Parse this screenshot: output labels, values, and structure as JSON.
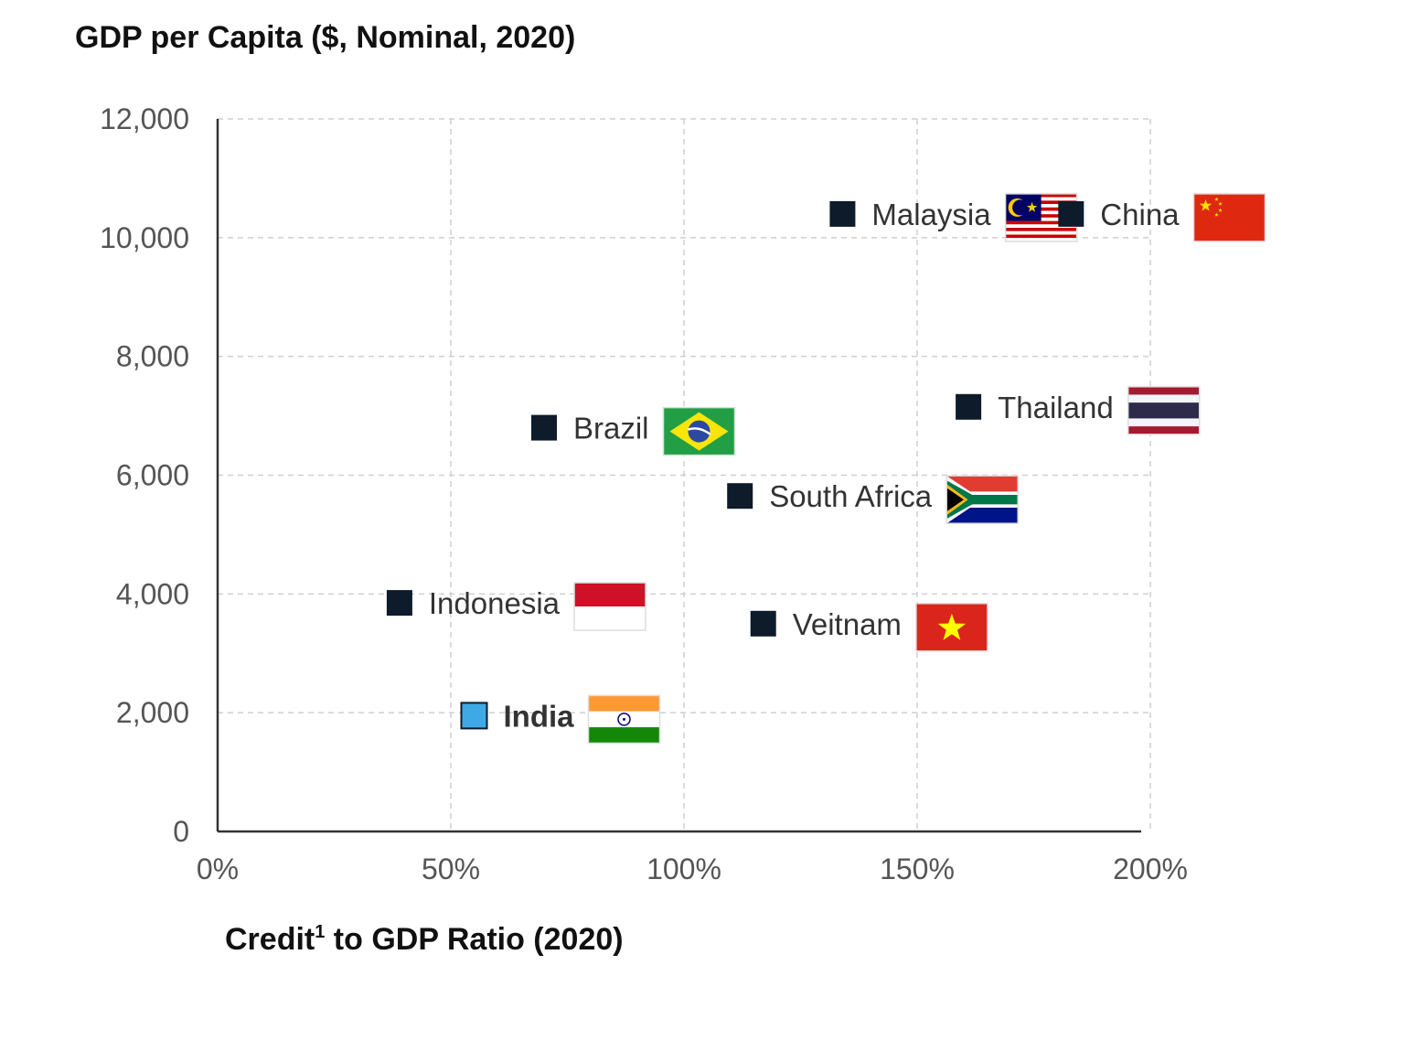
{
  "chart_data": {
    "type": "scatter",
    "title": "GDP per Capita ($, Nominal, 2020)",
    "xlabel_main": "Credit",
    "xlabel_sup": "1",
    "xlabel_rest": " to GDP Ratio (2020)",
    "xlim": [
      0,
      200
    ],
    "ylim": [
      0,
      12000
    ],
    "x_ticks": [
      0,
      50,
      100,
      150,
      200
    ],
    "x_tick_labels": [
      "0%",
      "50%",
      "100%",
      "150%",
      "200%"
    ],
    "y_ticks": [
      0,
      2000,
      4000,
      6000,
      8000,
      10000,
      12000
    ],
    "y_tick_labels": [
      "0",
      "2,000",
      "4,000",
      "6,000",
      "8,000",
      "10,000",
      "12,000"
    ],
    "grid": true,
    "colors": {
      "default": "#0d1b2a",
      "highlight": "#3fa9e6",
      "label_default": "#333333"
    },
    "points": [
      {
        "name": "Malaysia",
        "x": 134,
        "y": 10400,
        "flag": "malaysia-flag",
        "highlight": false
      },
      {
        "name": "China",
        "x": 183,
        "y": 10400,
        "flag": "china-flag",
        "highlight": false
      },
      {
        "name": "Thailand",
        "x": 161,
        "y": 7150,
        "flag": "thailand-flag",
        "highlight": false
      },
      {
        "name": "Brazil",
        "x": 70,
        "y": 6800,
        "flag": "brazil-flag",
        "highlight": false
      },
      {
        "name": "South Africa",
        "x": 112,
        "y": 5650,
        "flag": "south-africa-flag",
        "highlight": false
      },
      {
        "name": "Indonesia",
        "x": 39,
        "y": 3850,
        "flag": "indonesia-flag",
        "highlight": false
      },
      {
        "name": "Veitnam",
        "x": 117,
        "y": 3500,
        "flag": "vietnam-flag",
        "highlight": false
      },
      {
        "name": "India",
        "x": 55,
        "y": 1950,
        "flag": "india-flag",
        "highlight": true
      }
    ]
  }
}
